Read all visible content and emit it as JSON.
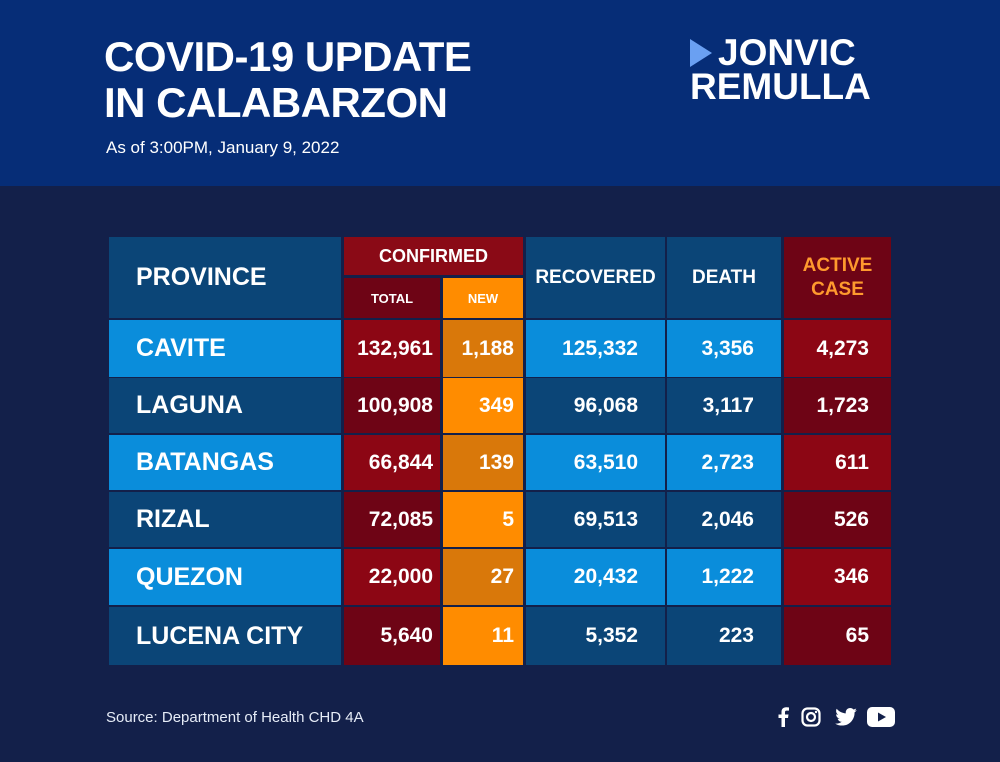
{
  "header": {
    "title_line1": "COVID-19 UPDATE",
    "title_line2": "IN CALABARZON",
    "subtitle": "As of 3:00PM, January 9, 2022",
    "logo_line1": "JONVIC",
    "logo_line2": "REMULLA"
  },
  "colors": {
    "header_band": "#062d77",
    "background": "#13204a",
    "province_dark": "#0b4577",
    "province_light": "#0a8ddb",
    "confirmed_header": "#8a0a16",
    "total_dark": "#6e0415",
    "total_light": "#8c0614",
    "new_header": "#ff8c00",
    "new_dark": "#ff8c00",
    "new_light": "#d9780a",
    "active_dark": "#6e0415",
    "active_light": "#8c0614",
    "active_label": "#ff9a2e"
  },
  "table": {
    "headers": {
      "province": "PROVINCE",
      "confirmed": "CONFIRMED",
      "total": "TOTAL",
      "new": "NEW",
      "recovered": "RECOVERED",
      "death": "DEATH",
      "active_line1": "ACTIVE",
      "active_line2": "CASE"
    },
    "rows": [
      {
        "province": "CAVITE",
        "total": "132,961",
        "new": "1,188",
        "recovered": "125,332",
        "death": "3,356",
        "active": "4,273"
      },
      {
        "province": "LAGUNA",
        "total": "100,908",
        "new": "349",
        "recovered": "96,068",
        "death": "3,117",
        "active": "1,723"
      },
      {
        "province": "BATANGAS",
        "total": "66,844",
        "new": "139",
        "recovered": "63,510",
        "death": "2,723",
        "active": "611"
      },
      {
        "province": "RIZAL",
        "total": "72,085",
        "new": "5",
        "recovered": "69,513",
        "death": "2,046",
        "active": "526"
      },
      {
        "province": "QUEZON",
        "total": "22,000",
        "new": "27",
        "recovered": "20,432",
        "death": "1,222",
        "active": "346"
      },
      {
        "province": "LUCENA CITY",
        "total": "5,640",
        "new": "11",
        "recovered": "5,352",
        "death": "223",
        "active": "65"
      }
    ]
  },
  "footer": {
    "source": "Source: Department of Health CHD 4A",
    "social_icons": [
      "facebook-icon",
      "instagram-icon",
      "twitter-icon",
      "youtube-icon"
    ]
  }
}
